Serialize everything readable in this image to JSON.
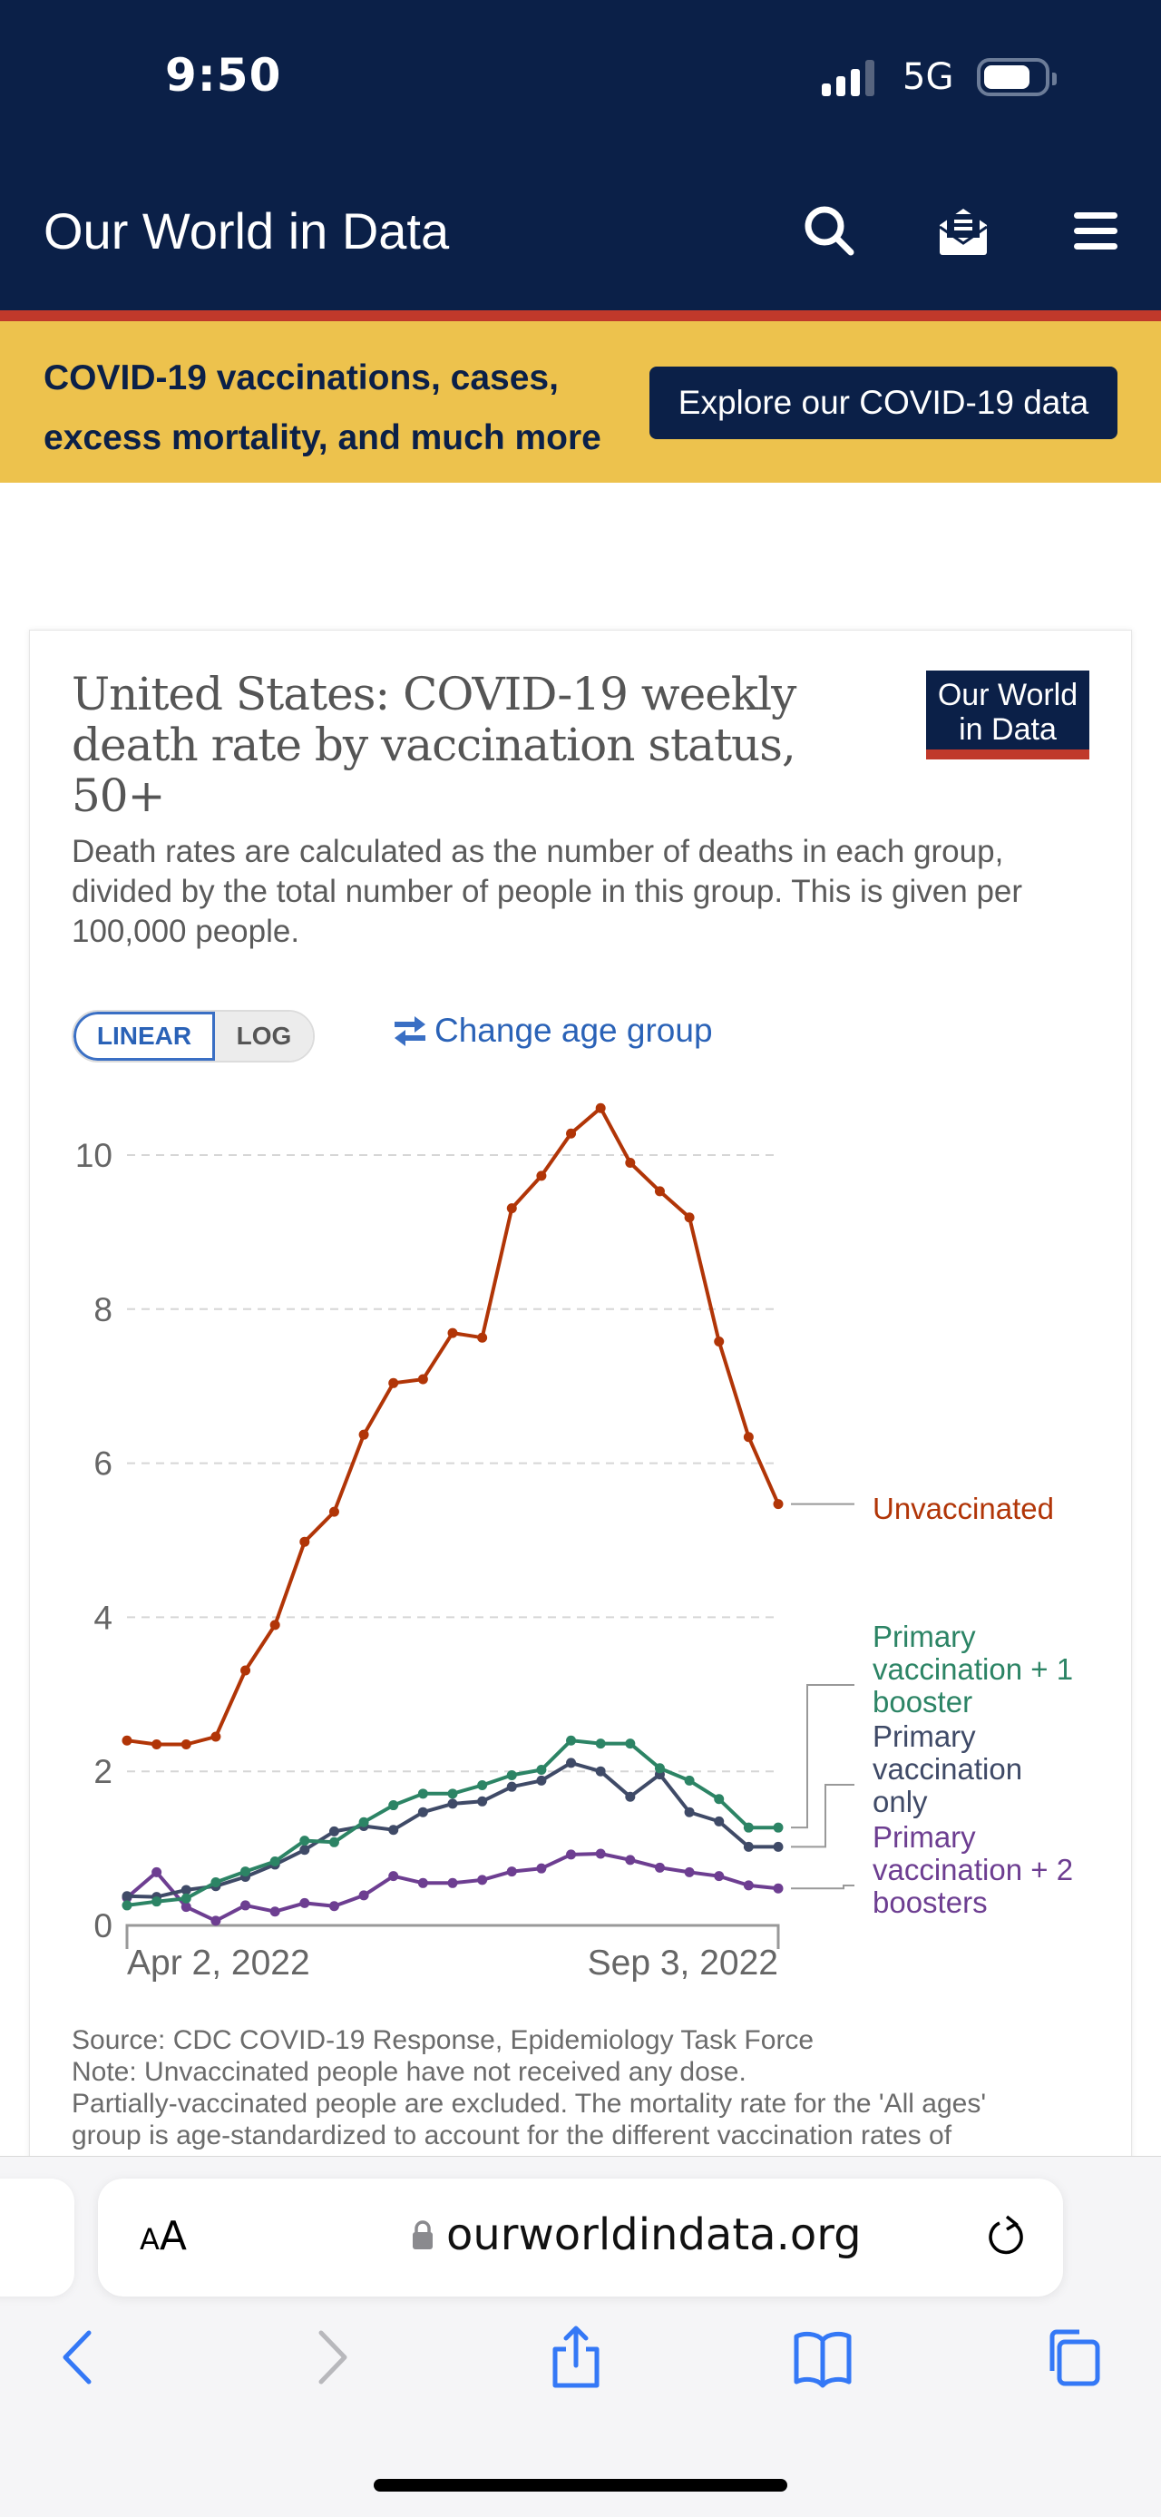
{
  "status_bar": {
    "time": "9:50",
    "network": "5G"
  },
  "header": {
    "site_title": "Our World in Data",
    "icons": [
      "search-icon",
      "newsletter-icon",
      "menu-icon"
    ]
  },
  "banner": {
    "text": "COVID-19 vaccinations, cases, excess mortality, and much more",
    "button_label": "Explore our COVID-19 data"
  },
  "card": {
    "logo_line1": "Our World",
    "logo_line2": "in Data",
    "scale_options": [
      {
        "label": "LINEAR",
        "active": true
      },
      {
        "label": "LOG",
        "active": false
      }
    ],
    "change_age_label": "Change age group",
    "footer_lines": [
      "Source: CDC COVID-19 Response, Epidemiology Task Force",
      "Note: Unvaccinated people have not received any dose.",
      "Partially-vaccinated people are excluded. The mortality rate for the 'All ages'",
      "group is age-standardized to account for the different vaccination rates of"
    ]
  },
  "chart_data": {
    "type": "line",
    "title": "United States: COVID-19 weekly death rate by vaccination status, 50+",
    "subtitle": "Death rates are calculated as the number of deaths in each group, divided by the total number of people in this group. This is given per 100,000 people.",
    "xlabel": "",
    "ylabel": "",
    "x_ticks": [
      "Apr 2, 2022",
      "Sep 3, 2022"
    ],
    "x_start": "Apr 2, 2022",
    "x_end": "Sep 3, 2022",
    "x_interval": "weekly",
    "y_ticks": [
      0,
      2,
      4,
      6,
      8,
      10
    ],
    "ylim": [
      0,
      10.7
    ],
    "grid": true,
    "legend": "right (line labels)",
    "series": [
      {
        "name": "Unvaccinated",
        "color": "#b13507",
        "values": [
          2.4,
          2.35,
          2.35,
          2.45,
          3.31,
          3.9,
          4.98,
          5.37,
          6.37,
          7.04,
          7.09,
          7.69,
          7.63,
          9.31,
          9.73,
          10.28,
          10.61,
          9.9,
          9.53,
          9.19,
          7.58,
          6.34,
          5.47
        ]
      },
      {
        "name": "Primary vaccination + 1 booster",
        "color": "#2c8465",
        "values": [
          0.26,
          0.31,
          0.35,
          0.56,
          0.7,
          0.83,
          1.1,
          1.08,
          1.34,
          1.56,
          1.71,
          1.71,
          1.82,
          1.95,
          2.02,
          2.4,
          2.36,
          2.36,
          2.04,
          1.88,
          1.64,
          1.27,
          1.27
        ]
      },
      {
        "name": "Primary vaccination only",
        "color": "#3f4a67",
        "values": [
          0.38,
          0.37,
          0.46,
          0.51,
          0.63,
          0.79,
          0.98,
          1.22,
          1.29,
          1.24,
          1.47,
          1.58,
          1.61,
          1.8,
          1.88,
          2.11,
          2.0,
          1.67,
          1.96,
          1.47,
          1.35,
          1.02,
          1.02
        ]
      },
      {
        "name": "Primary vaccination + 2 boosters",
        "color": "#6d3e91",
        "values": [
          0.36,
          0.69,
          0.24,
          0.06,
          0.26,
          0.18,
          0.29,
          0.25,
          0.39,
          0.64,
          0.55,
          0.55,
          0.59,
          0.7,
          0.74,
          0.92,
          0.93,
          0.85,
          0.75,
          0.69,
          0.64,
          0.52,
          0.48
        ]
      }
    ],
    "labels": [
      {
        "series": 0,
        "lines": [
          "Unvaccinated"
        ]
      },
      {
        "series": 1,
        "lines": [
          "Primary",
          "vaccination + 1",
          "booster"
        ]
      },
      {
        "series": 2,
        "lines": [
          "Primary",
          "vaccination",
          "only"
        ]
      },
      {
        "series": 3,
        "lines": [
          "Primary",
          "vaccination + 2",
          "boosters"
        ]
      }
    ]
  },
  "browser": {
    "aa_small": "A",
    "aa_large": "A",
    "url": "ourworldindata.org",
    "toolbar": [
      "back-icon",
      "forward-icon",
      "share-icon",
      "bookmarks-icon",
      "tabs-icon"
    ]
  }
}
